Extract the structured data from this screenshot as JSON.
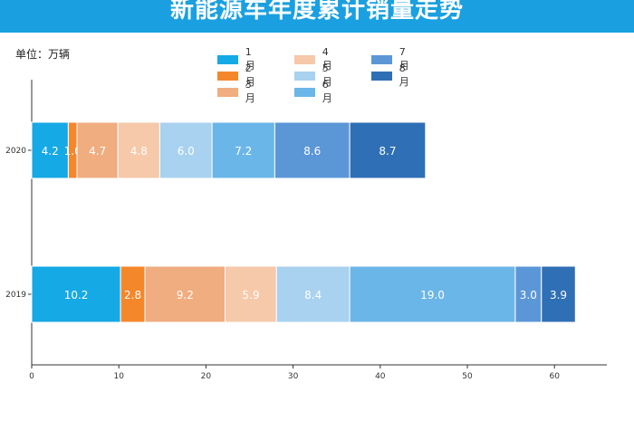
{
  "header": {
    "title": "新能源车年度累计销量走势"
  },
  "unit_label": "单位：万辆",
  "chart_data": {
    "type": "bar",
    "orientation": "horizontal",
    "stacked": true,
    "categories": [
      "2020",
      "2019"
    ],
    "series": [
      {
        "name": "1月",
        "color": "#15a9e5",
        "values": [
          4.2,
          10.2
        ]
      },
      {
        "name": "2月",
        "color": "#f5872b",
        "values": [
          1.0,
          2.8
        ]
      },
      {
        "name": "3月",
        "color": "#f0ad80",
        "values": [
          4.7,
          9.2
        ]
      },
      {
        "name": "4月",
        "color": "#f6c9aa",
        "values": [
          4.8,
          5.9
        ]
      },
      {
        "name": "5月",
        "color": "#a8d2ef",
        "values": [
          6.0,
          8.4
        ]
      },
      {
        "name": "6月",
        "color": "#6bb6e8",
        "values": [
          7.2,
          19.0
        ]
      },
      {
        "name": "7月",
        "color": "#5b97d6",
        "values": [
          8.6,
          3.0
        ]
      },
      {
        "name": "8月",
        "color": "#2f6fb5",
        "values": [
          8.7,
          3.9
        ]
      }
    ],
    "value_labels": [
      [
        "4.2",
        "1.0",
        "4.7",
        "4.8",
        "6.0",
        "7.2",
        "8.6",
        "8.7"
      ],
      [
        "10.2",
        "2.8",
        "9.2",
        "5.9",
        "8.4",
        "19.0",
        "3.0",
        "3.9"
      ]
    ],
    "xlim": [
      0,
      65
    ],
    "xticks": [
      0,
      10,
      20,
      30,
      40,
      50,
      60
    ],
    "xtick_labels": [
      "0",
      "10",
      "20",
      "30",
      "40",
      "50",
      "60"
    ],
    "legend_position": "top-center",
    "grid": false
  }
}
